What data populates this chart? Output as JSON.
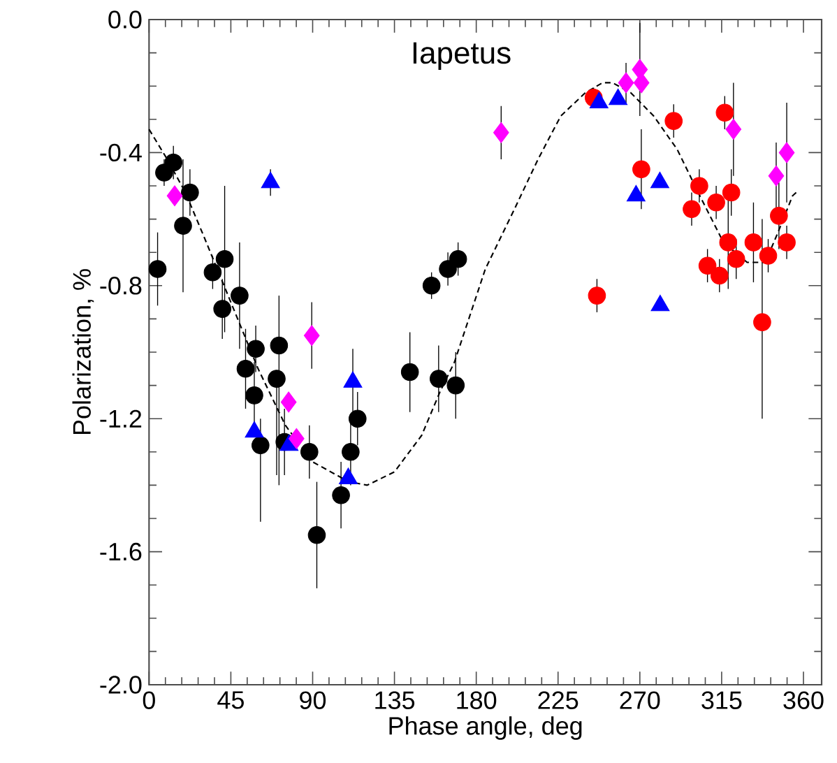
{
  "chart_data": {
    "type": "scatter",
    "title": "Iapetus",
    "xlabel": "Phase angle, deg",
    "ylabel": "Polarization, %",
    "xlim": [
      0,
      370
    ],
    "ylim": [
      -2,
      0
    ],
    "xticks": [
      0,
      45,
      90,
      135,
      180,
      225,
      270,
      315,
      360
    ],
    "yticks": [
      {
        "value": -2,
        "label": "-2.0"
      },
      -1.6,
      -1.2,
      -0.8,
      -0.4,
      {
        "value": 0,
        "label": "0.0"
      }
    ],
    "series": [
      {
        "type": "line",
        "color": "#000000",
        "marker": "none",
        "line_style": "dashed",
        "x": [
          0,
          10,
          20,
          30,
          45,
          60,
          75,
          90,
          110,
          120,
          135,
          150,
          160,
          168,
          185,
          201,
          214,
          226.5,
          240,
          249.5,
          255,
          265,
          277.6,
          290.5,
          303,
          316,
          329,
          339,
          346,
          354,
          356
        ],
        "values": [
          -0.33,
          -0.42,
          -0.52,
          -0.65,
          -0.85,
          -1.05,
          -1.22,
          -1.33,
          -1.39,
          -1.4,
          -1.36,
          -1.25,
          -1.12,
          -1.03,
          -0.75,
          -0.57,
          -0.42,
          -0.29,
          -0.22,
          -0.19,
          -0.19,
          -0.22,
          -0.29,
          -0.39,
          -0.53,
          -0.67,
          -0.73,
          -0.73,
          -0.64,
          -0.53,
          -0.52
        ]
      },
      {
        "color": "#000000",
        "marker": "circle",
        "x": [
          4.7,
          8.3,
          13.4,
          18.7,
          22.5,
          35,
          41.6,
          40.3,
          49.8,
          53.1,
          57.9,
          58.7,
          61.3,
          71.5,
          70.2,
          74.5,
          88.2,
          92.3,
          105.6,
          110.9,
          114.7,
          143.5,
          155.4,
          159.3,
          164.4,
          168.7,
          170
        ],
        "values": [
          -0.75,
          -0.46,
          -0.43,
          -0.62,
          -0.52,
          -0.76,
          -0.72,
          -0.87,
          -0.83,
          -1.05,
          -1.13,
          -0.99,
          -1.28,
          -0.98,
          -1.08,
          -1.27,
          -1.3,
          -1.55,
          -1.43,
          -1.3,
          -1.2,
          -1.06,
          -0.8,
          -1.08,
          -0.75,
          -1.1,
          -0.72
        ],
        "errors": [
          0.11,
          0.04,
          0.05,
          0.2,
          0.07,
          0.05,
          0.22,
          0.09,
          0.16,
          0.12,
          0.1,
          0.07,
          [
            -1.51,
            -1.2
          ],
          [
            -1.4,
            -0.83
          ],
          [
            -1.37,
            -1.08
          ],
          0.1,
          0.08,
          0.16,
          0.1,
          0.1,
          0.08,
          0.12,
          0.04,
          0.1,
          0.05,
          0.1,
          0.05
        ]
      },
      {
        "color": "#ff0000",
        "marker": "circle",
        "x": [
          244.6,
          246.4,
          270.8,
          288.6,
          316.7,
          302.7,
          298.5,
          312,
          320.3,
          318.6,
          323,
          307.2,
          313.8,
          332.5,
          337.3,
          340.6,
          346.5,
          350.8
        ],
        "values": [
          -0.235,
          -0.83,
          -0.45,
          -0.305,
          -0.28,
          -0.5,
          -0.57,
          -0.55,
          -0.52,
          -0.67,
          -0.72,
          -0.74,
          -0.77,
          -0.67,
          -0.91,
          -0.71,
          -0.59,
          -0.67
        ],
        "errors": [
          0.03,
          0.05,
          0.12,
          0.05,
          0.05,
          0.05,
          0.05,
          0.05,
          0.07,
          0.14,
          0.06,
          0.05,
          0.05,
          0.12,
          [
            -1.2,
            -0.6
          ],
          0.05,
          0.1,
          0.05
        ]
      },
      {
        "color": "#0000ff",
        "marker": "triangle",
        "x": [
          66.8,
          57.9,
          77,
          112.1,
          109.6
        ],
        "values": [
          -0.49,
          -1.24,
          -1.28,
          -1.09,
          -1.38
        ],
        "errors": [
          0.04,
          null,
          null,
          0.1,
          null
        ]
      },
      {
        "color": "#ff00ff",
        "marker": "diamond",
        "x": [
          14.1,
          89.5,
          76.8,
          81.1
        ],
        "values": [
          -0.53,
          -0.95,
          -1.15,
          -1.26
        ],
        "errors": [
          null,
          0.1,
          null,
          null
        ]
      },
      {
        "color": "#0000ff",
        "marker": "triangle",
        "x": [
          247.5,
          258,
          267.9,
          281,
          281.2
        ],
        "values": [
          -0.25,
          -0.24,
          -0.53,
          -0.49,
          -0.86
        ]
      },
      {
        "color": "#ff00ff",
        "marker": "diamond",
        "x": [
          193.7,
          262.4,
          270,
          270.9,
          321.5,
          350.8,
          345
        ],
        "values": [
          -0.34,
          -0.19,
          -0.15,
          -0.19,
          -0.33,
          -0.4,
          -0.47
        ],
        "errors": [
          0.08,
          0.06,
          0.14,
          null,
          0.14,
          0.15,
          0.1
        ]
      }
    ]
  }
}
